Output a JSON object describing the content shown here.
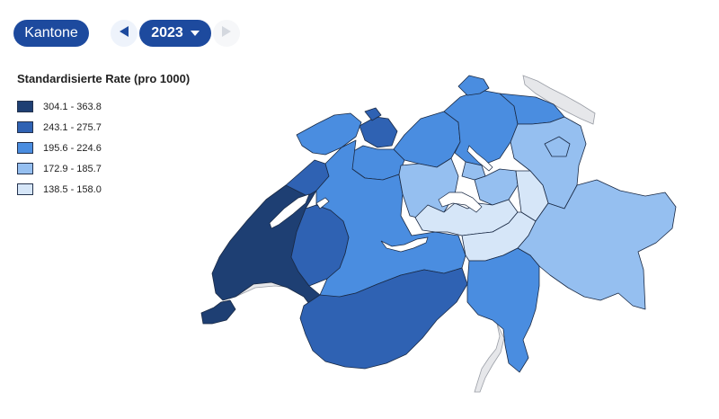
{
  "controls": {
    "level_label": "Kantone",
    "year_label": "2023"
  },
  "legend": {
    "title": "Standardisierte Rate (pro 1000)",
    "items": [
      {
        "label": "304.1 - 363.8",
        "color": "#1e3f73"
      },
      {
        "label": "243.1 - 275.7",
        "color": "#2f62b3"
      },
      {
        "label": "195.6 - 224.6",
        "color": "#4a8de0"
      },
      {
        "label": "172.9 - 185.7",
        "color": "#95bff0"
      },
      {
        "label": "138.5 - 158.0",
        "color": "#d6e6f8"
      }
    ]
  }
}
